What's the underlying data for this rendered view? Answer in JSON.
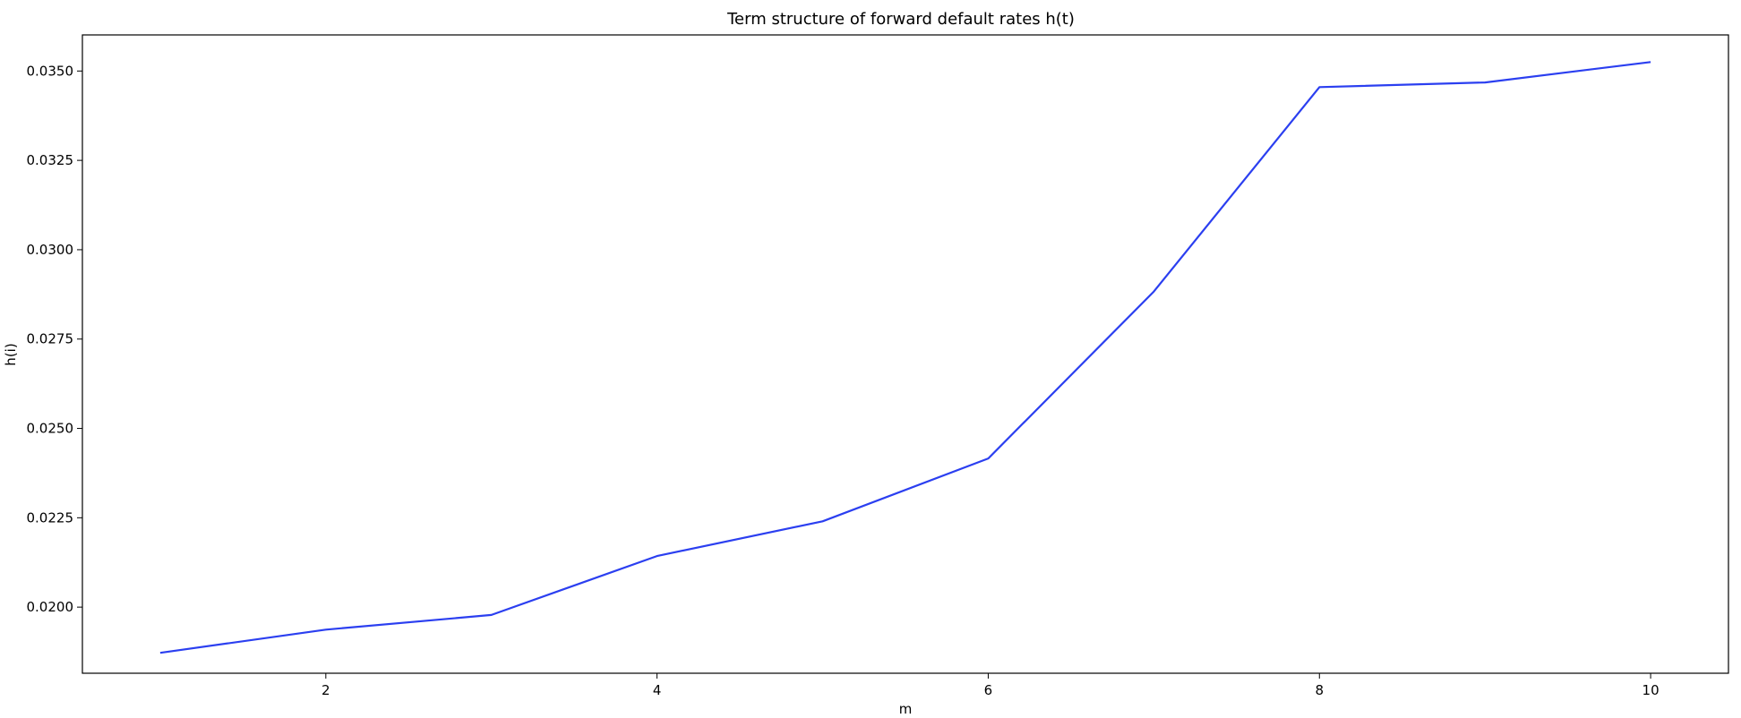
{
  "chart_data": {
    "type": "line",
    "title": "Term structure of forward default rates h(t)",
    "xlabel": "m",
    "ylabel": "h(i)",
    "xlim": [
      0.53,
      10.47
    ],
    "ylim": [
      0.01815,
      0.03601
    ],
    "xticks": [
      2,
      4,
      6,
      8,
      10
    ],
    "xtick_labels": [
      "2",
      "4",
      "6",
      "8",
      "10"
    ],
    "yticks": [
      0.02,
      0.0225,
      0.025,
      0.0275,
      0.03,
      0.0325,
      0.035
    ],
    "ytick_labels": [
      "0.0200",
      "0.0225",
      "0.0250",
      "0.0275",
      "0.0300",
      "0.0325",
      "0.0350"
    ],
    "grid": false,
    "series": [
      {
        "color": "#2b3ff0",
        "x": [
          1,
          2,
          3,
          4,
          5,
          6,
          7,
          8,
          9,
          10
        ],
        "values": [
          0.01872,
          0.01937,
          0.01978,
          0.02143,
          0.0224,
          0.02416,
          0.02883,
          0.03455,
          0.03468,
          0.03525
        ]
      }
    ]
  }
}
